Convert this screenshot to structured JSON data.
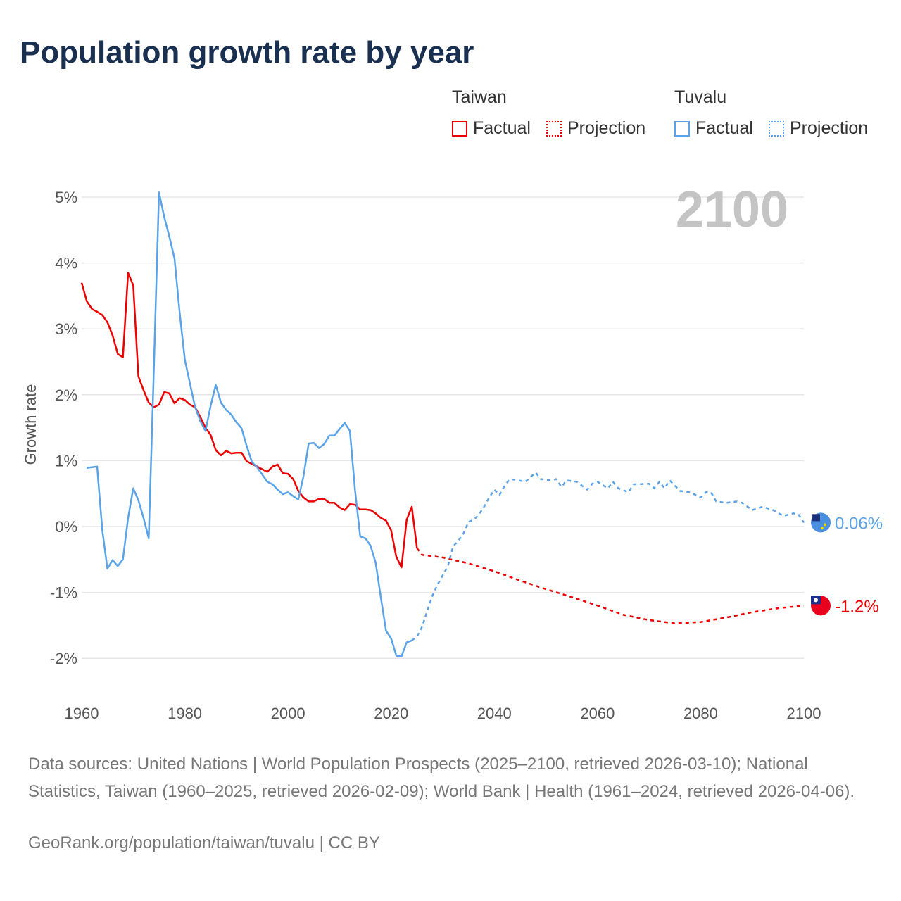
{
  "title": "Population growth rate by year",
  "legend": {
    "groups": [
      {
        "name": "Taiwan",
        "color": "#ee0000",
        "items": [
          "Factual",
          "Projection"
        ]
      },
      {
        "name": "Tuvalu",
        "color": "#5aa3e8",
        "items": [
          "Factual",
          "Projection"
        ]
      }
    ]
  },
  "chart_data": {
    "type": "line",
    "title": "Population growth rate by year",
    "xlabel": "",
    "ylabel": "Growth rate",
    "xlim": [
      1960,
      2100
    ],
    "ylim": [
      -2,
      5
    ],
    "x_ticks": [
      "1960",
      "1980",
      "2000",
      "2020",
      "2040",
      "2060",
      "2080",
      "2100"
    ],
    "y_ticks": [
      "5%",
      "4%",
      "3%",
      "2%",
      "1%",
      "0%",
      "-1%",
      "-2%"
    ],
    "year_watermark": "2100",
    "series": [
      {
        "name": "Taiwan Factual",
        "color": "#ee0000",
        "dashed": false,
        "x": [
          1960,
          1961,
          1962,
          1963,
          1964,
          1965,
          1966,
          1967,
          1968,
          1969,
          1970,
          1971,
          1972,
          1973,
          1974,
          1975,
          1976,
          1977,
          1978,
          1979,
          1980,
          1981,
          1982,
          1983,
          1984,
          1985,
          1986,
          1987,
          1988,
          1989,
          1990,
          1991,
          1992,
          1993,
          1994,
          1995,
          1996,
          1997,
          1998,
          1999,
          2000,
          2001,
          2002,
          2003,
          2004,
          2005,
          2006,
          2007,
          2008,
          2009,
          2010,
          2011,
          2012,
          2013,
          2014,
          2015,
          2016,
          2017,
          2018,
          2019,
          2020,
          2021,
          2022,
          2023,
          2024,
          2025
        ],
        "y": [
          3.7,
          3.42,
          3.3,
          3.26,
          3.21,
          3.1,
          2.9,
          2.62,
          2.57,
          3.85,
          3.66,
          2.28,
          2.07,
          1.88,
          1.81,
          1.85,
          2.04,
          2.02,
          1.87,
          1.95,
          1.92,
          1.85,
          1.81,
          1.66,
          1.5,
          1.39,
          1.16,
          1.08,
          1.15,
          1.11,
          1.12,
          1.12,
          0.99,
          0.95,
          0.91,
          0.87,
          0.83,
          0.91,
          0.94,
          0.81,
          0.8,
          0.72,
          0.54,
          0.44,
          0.38,
          0.38,
          0.42,
          0.42,
          0.36,
          0.36,
          0.29,
          0.25,
          0.34,
          0.33,
          0.26,
          0.26,
          0.25,
          0.2,
          0.13,
          0.09,
          -0.06,
          -0.46,
          -0.62,
          0.1,
          0.3,
          -0.33
        ]
      },
      {
        "name": "Taiwan Projection",
        "color": "#ee0000",
        "dashed": true,
        "x": [
          2025,
          2026,
          2030,
          2035,
          2040,
          2045,
          2050,
          2055,
          2060,
          2065,
          2070,
          2075,
          2080,
          2085,
          2090,
          2095,
          2100
        ],
        "y": [
          -0.33,
          -0.43,
          -0.47,
          -0.56,
          -0.68,
          -0.82,
          -0.95,
          -1.07,
          -1.2,
          -1.34,
          -1.42,
          -1.47,
          -1.45,
          -1.38,
          -1.3,
          -1.24,
          -1.2
        ]
      },
      {
        "name": "Tuvalu Factual",
        "color": "#5aa3e8",
        "dashed": false,
        "x": [
          1961,
          1962,
          1963,
          1964,
          1965,
          1966,
          1967,
          1968,
          1969,
          1970,
          1971,
          1972,
          1973,
          1974,
          1975,
          1976,
          1977,
          1978,
          1979,
          1980,
          1981,
          1982,
          1983,
          1984,
          1985,
          1986,
          1987,
          1988,
          1989,
          1990,
          1991,
          1992,
          1993,
          1994,
          1995,
          1996,
          1997,
          1998,
          1999,
          2000,
          2001,
          2002,
          2003,
          2004,
          2005,
          2006,
          2007,
          2008,
          2009,
          2010,
          2011,
          2012,
          2013,
          2014,
          2015,
          2016,
          2017,
          2018,
          2019,
          2020,
          2021,
          2022,
          2023,
          2024
        ],
        "y": [
          0.89,
          0.9,
          0.91,
          -0.05,
          -0.64,
          -0.51,
          -0.6,
          -0.5,
          0.13,
          0.58,
          0.4,
          0.13,
          -0.18,
          2.4,
          5.07,
          4.7,
          4.4,
          4.07,
          3.25,
          2.53,
          2.17,
          1.81,
          1.6,
          1.45,
          1.83,
          2.15,
          1.88,
          1.77,
          1.7,
          1.58,
          1.49,
          1.22,
          0.98,
          0.9,
          0.79,
          0.68,
          0.64,
          0.56,
          0.49,
          0.52,
          0.46,
          0.41,
          0.76,
          1.26,
          1.27,
          1.19,
          1.25,
          1.38,
          1.38,
          1.48,
          1.57,
          1.45,
          0.55,
          -0.15,
          -0.18,
          -0.29,
          -0.55,
          -1.08,
          -1.58,
          -1.7,
          -1.96,
          -1.97,
          -1.76,
          -1.73
        ]
      },
      {
        "name": "Tuvalu Projection",
        "color": "#5aa3e8",
        "dashed": true,
        "x": [
          2024,
          2025,
          2026,
          2027,
          2028,
          2029,
          2030,
          2031,
          2032,
          2033,
          2034,
          2035,
          2036,
          2037,
          2038,
          2039,
          2040,
          2041,
          2042,
          2043,
          2044,
          2046,
          2048,
          2049,
          2051,
          2052,
          2053,
          2054,
          2056,
          2058,
          2059,
          2060,
          2062,
          2063,
          2064,
          2066,
          2067,
          2070,
          2071,
          2072,
          2073,
          2074,
          2076,
          2078,
          2080,
          2081,
          2082,
          2083,
          2085,
          2087,
          2088,
          2090,
          2092,
          2094,
          2096,
          2098,
          2099,
          2100
        ],
        "y": [
          -1.73,
          -1.67,
          -1.52,
          -1.28,
          -1.05,
          -0.88,
          -0.74,
          -0.6,
          -0.3,
          -0.22,
          -0.11,
          0.07,
          0.1,
          0.18,
          0.3,
          0.44,
          0.56,
          0.48,
          0.62,
          0.72,
          0.71,
          0.68,
          0.82,
          0.72,
          0.7,
          0.72,
          0.6,
          0.7,
          0.68,
          0.56,
          0.65,
          0.68,
          0.58,
          0.68,
          0.58,
          0.52,
          0.64,
          0.65,
          0.58,
          0.68,
          0.58,
          0.7,
          0.54,
          0.52,
          0.44,
          0.52,
          0.52,
          0.38,
          0.36,
          0.38,
          0.36,
          0.25,
          0.3,
          0.25,
          0.16,
          0.2,
          0.18,
          0.06
        ]
      }
    ],
    "end_labels": [
      {
        "series": "Tuvalu",
        "text": "0.06%",
        "value": 0.06,
        "color": "#5aa3e8"
      },
      {
        "series": "Taiwan",
        "text": "-1.2%",
        "value": -1.2,
        "color": "#ee0000"
      }
    ]
  },
  "footer": {
    "sources": "Data sources: United Nations | World Population Prospects (2025–2100, retrieved 2026-03-10); National Statistics, Taiwan (1960–2025, retrieved 2026-02-09); World Bank | Health (1961–2024, retrieved 2026-04-06).",
    "credit": "GeoRank.org/population/taiwan/tuvalu | CC BY"
  }
}
